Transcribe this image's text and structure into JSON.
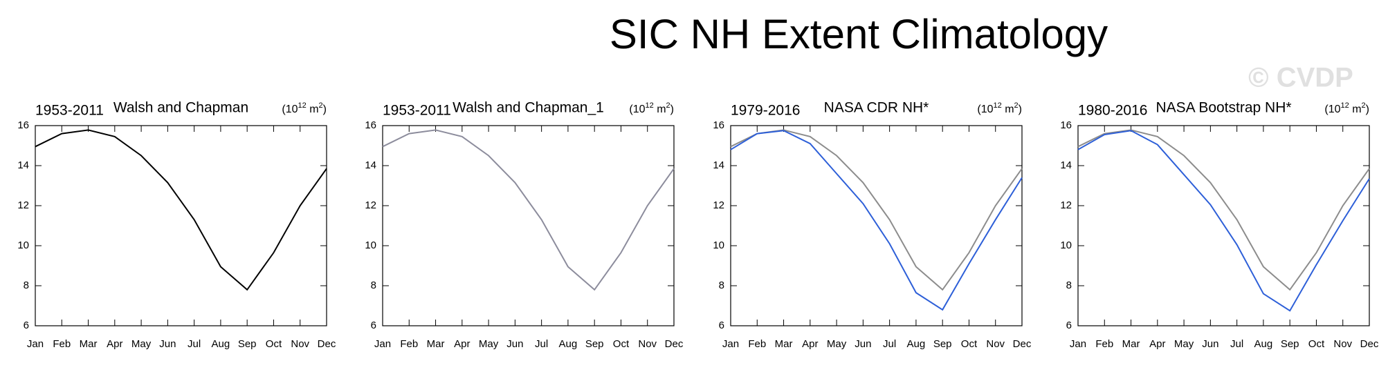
{
  "title": "SIC NH Extent Climatology",
  "watermark": "© CVDP",
  "chart_data": [
    {
      "type": "line",
      "period": "1953-2011",
      "title": "Walsh and Chapman",
      "units": [
        "(10",
        "12",
        " m",
        "2",
        ")"
      ],
      "categories": [
        "Jan",
        "Feb",
        "Mar",
        "Apr",
        "May",
        "Jun",
        "Jul",
        "Aug",
        "Sep",
        "Oct",
        "Nov",
        "Dec"
      ],
      "ylim": [
        6,
        16
      ],
      "yticks": [
        6,
        8,
        10,
        12,
        14,
        16
      ],
      "grid": false,
      "series": [
        {
          "color": "#000000",
          "values": [
            14.95,
            15.6,
            15.78,
            15.45,
            14.5,
            13.15,
            11.3,
            8.95,
            7.8,
            9.65,
            12.0,
            13.85
          ]
        }
      ]
    },
    {
      "type": "line",
      "period": "1953-2011",
      "title": "Walsh and Chapman_1",
      "units": [
        "(10",
        "12",
        " m",
        "2",
        ")"
      ],
      "categories": [
        "Jan",
        "Feb",
        "Mar",
        "Apr",
        "May",
        "Jun",
        "Jul",
        "Aug",
        "Sep",
        "Oct",
        "Nov",
        "Dec"
      ],
      "ylim": [
        6,
        16
      ],
      "yticks": [
        6,
        8,
        10,
        12,
        14,
        16
      ],
      "grid": false,
      "series": [
        {
          "color": "#8c8c9c",
          "values": [
            14.95,
            15.6,
            15.78,
            15.45,
            14.5,
            13.15,
            11.3,
            8.95,
            7.8,
            9.65,
            12.0,
            13.85
          ]
        }
      ]
    },
    {
      "type": "line",
      "period": "1979-2016",
      "title": "NASA CDR NH*",
      "units": [
        "(10",
        "12",
        " m",
        "2",
        ")"
      ],
      "categories": [
        "Jan",
        "Feb",
        "Mar",
        "Apr",
        "May",
        "Jun",
        "Jul",
        "Aug",
        "Sep",
        "Oct",
        "Nov",
        "Dec"
      ],
      "ylim": [
        6,
        16
      ],
      "yticks": [
        6,
        8,
        10,
        12,
        14,
        16
      ],
      "grid": false,
      "series": [
        {
          "color": "#8c8c8c",
          "values": [
            14.95,
            15.6,
            15.78,
            15.45,
            14.5,
            13.15,
            11.3,
            8.95,
            7.8,
            9.65,
            12.0,
            13.85
          ]
        },
        {
          "color": "#2d5fd8",
          "values": [
            14.8,
            15.6,
            15.75,
            15.1,
            13.6,
            12.1,
            10.1,
            7.65,
            6.8,
            9.1,
            11.3,
            13.4
          ]
        }
      ]
    },
    {
      "type": "line",
      "period": "1980-2016",
      "title": "NASA Bootstrap NH*",
      "units": [
        "(10",
        "12",
        " m",
        "2",
        ")"
      ],
      "categories": [
        "Jan",
        "Feb",
        "Mar",
        "Apr",
        "May",
        "Jun",
        "Jul",
        "Aug",
        "Sep",
        "Oct",
        "Nov",
        "Dec"
      ],
      "ylim": [
        6,
        16
      ],
      "yticks": [
        6,
        8,
        10,
        12,
        14,
        16
      ],
      "grid": false,
      "series": [
        {
          "color": "#8c8c8c",
          "values": [
            14.95,
            15.6,
            15.78,
            15.45,
            14.5,
            13.15,
            11.3,
            8.95,
            7.8,
            9.65,
            12.0,
            13.85
          ]
        },
        {
          "color": "#2d5fd8",
          "values": [
            14.8,
            15.55,
            15.75,
            15.05,
            13.55,
            12.05,
            10.05,
            7.6,
            6.75,
            9.05,
            11.25,
            13.35
          ]
        }
      ]
    }
  ]
}
